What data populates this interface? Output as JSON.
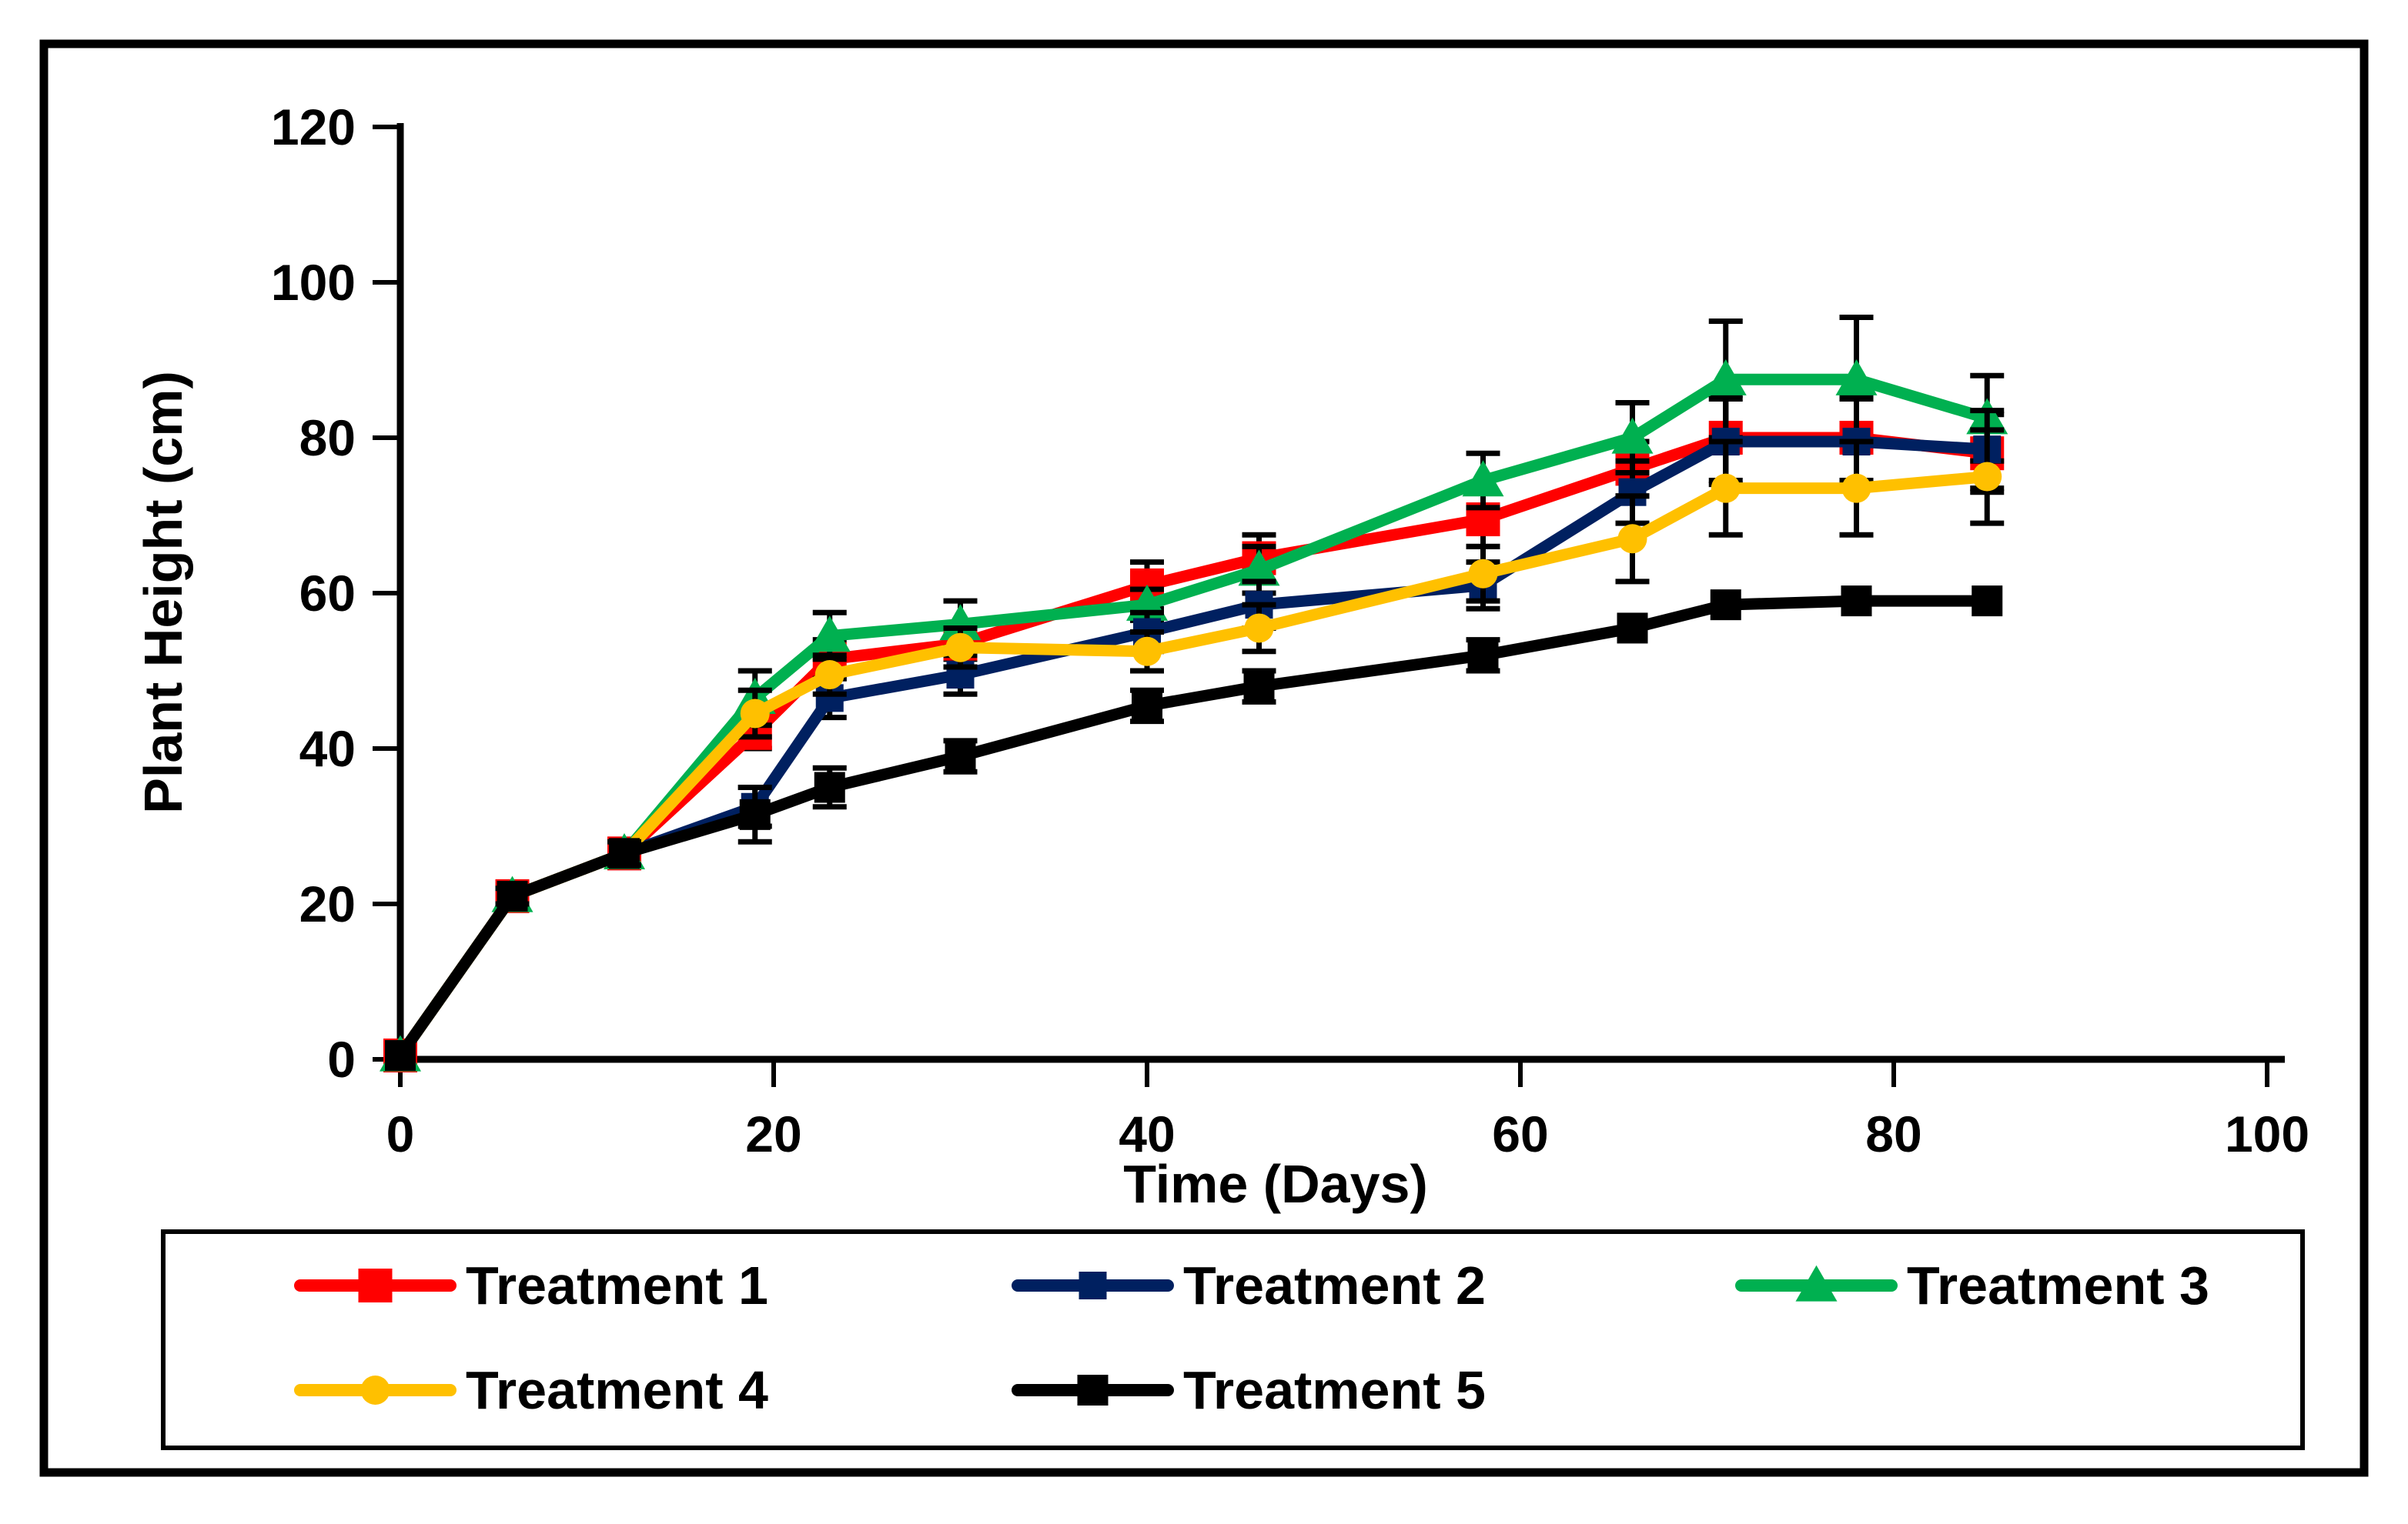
{
  "figure": {
    "background_color": "#FFFFFF",
    "border_color": "#000000",
    "text_color": "#000000"
  },
  "chart_data": {
    "type": "line",
    "title": "",
    "xlabel": "Time (Days)",
    "ylabel": "Plant Height (cm)",
    "grid": false,
    "legend_position": "bottom-box",
    "xlim": [
      0,
      100
    ],
    "ylim": [
      0,
      120
    ],
    "x_ticks": [
      0,
      20,
      40,
      60,
      80,
      100
    ],
    "y_ticks": [
      0,
      20,
      40,
      60,
      80,
      100,
      120
    ],
    "x": [
      0,
      6,
      12,
      19,
      23,
      30,
      40,
      46,
      58,
      66,
      71,
      78,
      85
    ],
    "error_bar_color": "#000000",
    "series": [
      {
        "name": "Treatment 1",
        "color": "#FF0000",
        "marker": "square",
        "values": [
          0.5,
          21,
          26.5,
          42,
          51.5,
          53.5,
          61,
          64.5,
          69.5,
          76,
          80,
          80,
          78
        ],
        "errors": [
          0,
          0,
          0,
          2,
          2.5,
          2,
          3,
          3,
          3.5,
          3.5,
          5.5,
          5.5,
          5
        ]
      },
      {
        "name": "Treatment 2",
        "color": "#002060",
        "marker": "square",
        "values": [
          0.5,
          21,
          26.5,
          32.5,
          46.5,
          49.5,
          55,
          58.5,
          61,
          73,
          79.5,
          79.5,
          78.5
        ],
        "errors": [
          0,
          0,
          0,
          2.5,
          2.5,
          2.5,
          2.5,
          3,
          3,
          4,
          5.5,
          5.5,
          5
        ]
      },
      {
        "name": "Treatment 3",
        "color": "#00B050",
        "marker": "triangle",
        "values": [
          0.5,
          21,
          26.5,
          46.5,
          54.5,
          56,
          58.5,
          63,
          74.5,
          80,
          87.5,
          87.5,
          82.5
        ],
        "errors": [
          0,
          0,
          0,
          3.5,
          3,
          3,
          2,
          3,
          3.5,
          4.5,
          7.5,
          8,
          5.5
        ]
      },
      {
        "name": "Treatment 4",
        "color": "#FFC000",
        "marker": "circle",
        "values": [
          0.5,
          21,
          26.5,
          44.5,
          49.5,
          53,
          52.5,
          55.5,
          62.5,
          67,
          73.5,
          73.5,
          75
        ],
        "errors": [
          0,
          0,
          0,
          3,
          2.5,
          2.5,
          2.5,
          3,
          3.5,
          5.5,
          6,
          6,
          6
        ]
      },
      {
        "name": "Treatment 5",
        "color": "#000000",
        "marker": "square",
        "values": [
          0.5,
          21,
          26.5,
          31.5,
          35,
          39,
          45.5,
          48,
          52,
          55.5,
          58.5,
          59,
          59
        ],
        "errors": [
          0,
          1,
          1.5,
          3.5,
          2.5,
          2,
          2,
          2,
          2,
          0,
          0,
          0,
          0
        ]
      }
    ],
    "draw_order": [
      0,
      2,
      1,
      3,
      4
    ],
    "legend_rows": [
      [
        0,
        1,
        2
      ],
      [
        3,
        4
      ]
    ]
  }
}
